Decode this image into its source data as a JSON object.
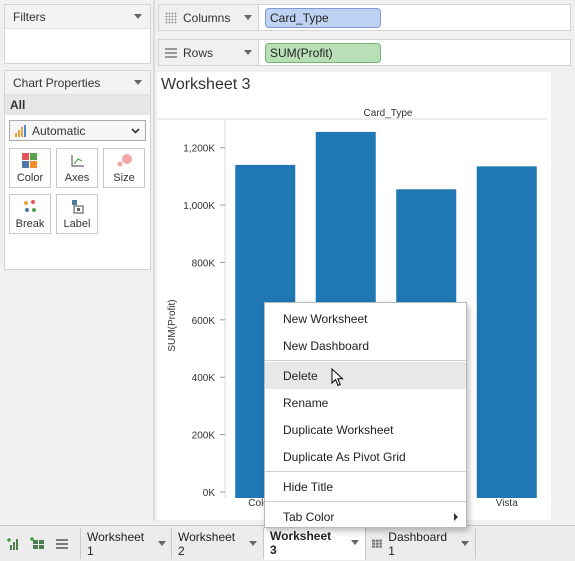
{
  "filters": {
    "title": "Filters"
  },
  "shelves": {
    "columns_label": "Columns",
    "columns_pill": "Card_Type",
    "rows_label": "Rows",
    "rows_pill": "SUM(Profit)"
  },
  "chart_properties": {
    "title": "Chart Properties",
    "all_label": "All",
    "mark_type": "Automatic",
    "buttons": [
      "Color",
      "Axes",
      "Size",
      "Break",
      "Label"
    ]
  },
  "worksheet": {
    "title": "Worksheet 3"
  },
  "chart_data": {
    "type": "bar",
    "title": "",
    "xlabel": "Card_Type",
    "ylabel": "SUM(Profit)",
    "categories": [
      "Colonial",
      "",
      "",
      "Vista"
    ],
    "visible_category_labels": [
      "Colonia",
      "Vista"
    ],
    "values": [
      1140000,
      1255000,
      1055000,
      1135000
    ],
    "ylim": [
      0,
      1300000
    ],
    "yticks": [
      0,
      200000,
      400000,
      600000,
      800000,
      1000000,
      1200000
    ],
    "ytick_labels": [
      "0K",
      "200K",
      "400K",
      "600K",
      "800K",
      "1,000K",
      "1,200K"
    ],
    "bar_color": "#1f77b4",
    "grid": false
  },
  "context_menu": {
    "items": [
      {
        "label": "New Worksheet"
      },
      {
        "label": "New Dashboard"
      },
      {
        "label": "Delete"
      },
      {
        "label": "Rename"
      },
      {
        "label": "Duplicate Worksheet"
      },
      {
        "label": "Duplicate As Pivot Grid"
      },
      {
        "label": "Hide Title"
      },
      {
        "label": "Tab Color"
      }
    ]
  },
  "tabs": [
    "Worksheet 1",
    "Worksheet 2",
    "Worksheet 3",
    "Dashboard 1"
  ],
  "active_tab": "Worksheet 3",
  "colors": {
    "accent": "#1f77b4"
  }
}
